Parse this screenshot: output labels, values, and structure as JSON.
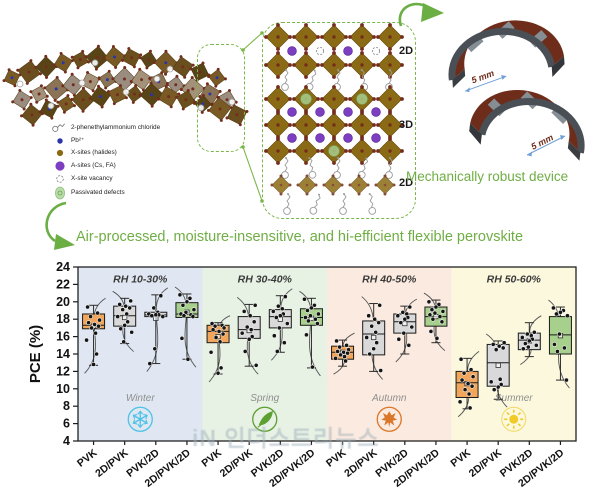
{
  "illustration": {
    "legend": [
      {
        "icon": "molecule-icon",
        "label": "2-phenethylammonium chloride"
      },
      {
        "icon": "pb-icon",
        "label": "Pb²⁺"
      },
      {
        "icon": "x-sites-icon",
        "label": "X-sites (halides)"
      },
      {
        "icon": "a-sites-icon",
        "label": "A-sites (Cs, FA)"
      },
      {
        "icon": "vacancy-icon",
        "label": "X-site vacancy"
      },
      {
        "icon": "defects-icon",
        "label": "Passivated defects"
      }
    ]
  },
  "panel": {
    "layers": [
      "2D",
      "3D",
      "2D"
    ]
  },
  "device": {
    "caption": "Mechanically robust device",
    "scale_label": "5 mm"
  },
  "headline": "Air-processed, moisture-insensitive, and hi-efficient flexible perovskite",
  "watermark": "iN 인더스트리뉴스",
  "accent_green": "#6fae44",
  "chart_data": {
    "type": "boxplot-scatter",
    "ylabel": "PCE (%)",
    "ylim": [
      4,
      24
    ],
    "yticks": [
      4,
      6,
      8,
      10,
      12,
      14,
      16,
      18,
      20,
      22,
      24
    ],
    "categories": [
      "PVK",
      "2D/PVK",
      "PVK/2D",
      "2D/PVK/2D"
    ],
    "box_colors": [
      "#f2a65c",
      "#d9d9d9",
      "#d9d9d9",
      "#a8d08d"
    ],
    "regions": [
      {
        "label": "RH 10-30%",
        "season": "Winter",
        "season_icon": "snowflake-icon",
        "icon_color": "#4cc3e6",
        "bg": "#e0e7f2",
        "groups": [
          {
            "whisker_low": 12.7,
            "q1": 16.9,
            "median": 17.3,
            "q3": 18.6,
            "whisker_high": 19.6,
            "mean": 17.2,
            "points": [
              19.4,
              18.7,
              18.3,
              17.9,
              17.6,
              17.4,
              17.2,
              17.0,
              16.4,
              15.6,
              14.0,
              12.8
            ]
          },
          {
            "whisker_low": 15.2,
            "q1": 17.2,
            "median": 18.4,
            "q3": 19.5,
            "whisker_high": 20.4,
            "mean": 18.2,
            "points": [
              20.1,
              19.7,
              19.5,
              19.3,
              19.1,
              18.6,
              18.3,
              17.7,
              17.3,
              16.9,
              16.5,
              15.4
            ]
          },
          {
            "whisker_low": 12.9,
            "q1": 18.3,
            "median": 18.5,
            "q3": 18.8,
            "whisker_high": 20.8,
            "mean": 18.1,
            "points": [
              20.7,
              19.3,
              18.8,
              18.6,
              18.5,
              18.5,
              18.4,
              18.3,
              14.6,
              12.9
            ]
          },
          {
            "whisker_low": 13.4,
            "q1": 18.2,
            "median": 18.6,
            "q3": 19.9,
            "whisker_high": 20.9,
            "mean": 18.8,
            "points": [
              20.8,
              20.4,
              20.0,
              19.6,
              19.1,
              18.8,
              18.6,
              18.5,
              18.4,
              18.3,
              15.8,
              13.4
            ]
          }
        ]
      },
      {
        "label": "RH 30-40%",
        "season": "Spring",
        "season_icon": "leaf-icon",
        "icon_color": "#5ca032",
        "bg": "#e7f1e4",
        "groups": [
          {
            "whisker_low": 11.7,
            "q1": 15.3,
            "median": 16.6,
            "q3": 17.3,
            "whisker_high": 17.6,
            "mean": 16.0,
            "points": [
              17.5,
              17.3,
              17.2,
              17.0,
              16.8,
              16.6,
              16.3,
              15.9,
              15.4,
              14.2,
              12.4,
              11.8
            ]
          },
          {
            "whisker_low": 12.6,
            "q1": 15.8,
            "median": 16.8,
            "q3": 18.3,
            "whisker_high": 19.7,
            "mean": 16.7,
            "points": [
              19.6,
              18.9,
              18.4,
              17.7,
              17.1,
              16.8,
              16.4,
              16.0,
              15.7,
              14.3,
              12.7
            ]
          },
          {
            "whisker_low": 14.2,
            "q1": 17.0,
            "median": 18.3,
            "q3": 19.1,
            "whisker_high": 20.7,
            "mean": 18.0,
            "points": [
              20.6,
              19.5,
              19.2,
              18.9,
              18.6,
              18.4,
              18.2,
              17.5,
              17.0,
              16.1,
              15.3,
              14.3
            ]
          },
          {
            "whisker_low": 12.4,
            "q1": 17.3,
            "median": 18.2,
            "q3": 19.2,
            "whisker_high": 20.4,
            "mean": 18.1,
            "points": [
              20.3,
              19.6,
              19.3,
              19.0,
              18.6,
              18.4,
              18.2,
              18.0,
              17.8,
              17.5,
              16.2,
              12.5
            ]
          }
        ]
      },
      {
        "label": "RH 40-50%",
        "season": "Autumn",
        "season_icon": "maple-leaf-icon",
        "icon_color": "#d9782a",
        "bg": "#fbeadf",
        "groups": [
          {
            "whisker_low": 12.6,
            "q1": 13.4,
            "median": 14.2,
            "q3": 14.9,
            "whisker_high": 15.6,
            "mean": 14.2,
            "points": [
              15.5,
              15.0,
              14.8,
              14.5,
              14.3,
              14.2,
              14.1,
              13.9,
              13.7,
              13.5,
              13.2
            ]
          },
          {
            "whisker_low": 12.0,
            "q1": 13.9,
            "median": 16.3,
            "q3": 17.8,
            "whisker_high": 19.8,
            "mean": 15.9,
            "points": [
              19.6,
              18.4,
              18.0,
              17.6,
              17.2,
              16.5,
              15.9,
              15.3,
              14.6,
              14.0,
              12.1
            ]
          },
          {
            "whisker_low": 14.0,
            "q1": 16.4,
            "median": 17.7,
            "q3": 18.6,
            "whisker_high": 19.5,
            "mean": 17.5,
            "points": [
              19.4,
              18.8,
              18.6,
              18.4,
              18.2,
              18.0,
              17.6,
              17.1,
              16.4,
              15.7,
              15.0
            ]
          },
          {
            "whisker_low": 15.3,
            "q1": 17.2,
            "median": 18.3,
            "q3": 19.4,
            "whisker_high": 20.2,
            "mean": 18.3,
            "points": [
              20.0,
              19.7,
              19.4,
              19.1,
              18.9,
              18.7,
              18.5,
              18.3,
              18.0,
              17.7,
              16.6,
              15.8
            ]
          }
        ]
      },
      {
        "label": "RH 50-60%",
        "season": "Summer",
        "season_icon": "sun-icon",
        "icon_color": "#f0cb28",
        "bg": "#fbf8dd",
        "groups": [
          {
            "whisker_low": 7.7,
            "q1": 9.0,
            "median": 10.7,
            "q3": 12.0,
            "whisker_high": 13.5,
            "mean": 10.6,
            "points": [
              13.4,
              12.2,
              11.8,
              11.4,
              11.0,
              10.6,
              10.3,
              9.9,
              9.4,
              8.5,
              7.8
            ]
          },
          {
            "whisker_low": 8.8,
            "q1": 10.3,
            "median": 13.0,
            "q3": 15.1,
            "whisker_high": 15.5,
            "mean": 12.7,
            "points": [
              15.3,
              15.1,
              14.9,
              14.7,
              14.5,
              11.1,
              10.8,
              10.5,
              10.2,
              9.9
            ]
          },
          {
            "whisker_low": 13.7,
            "q1": 14.5,
            "median": 15.6,
            "q3": 16.4,
            "whisker_high": 17.6,
            "mean": 15.5,
            "points": [
              16.5,
              16.3,
              16.1,
              15.9,
              15.7,
              15.5,
              15.2,
              15.0,
              14.8,
              14.6
            ]
          },
          {
            "whisker_low": 11.0,
            "q1": 14.0,
            "median": 16.2,
            "q3": 18.3,
            "whisker_high": 19.4,
            "mean": 16.1,
            "points": [
              19.3,
              19.0,
              18.8,
              18.6,
              18.4,
              16.3,
              15.1,
              14.7,
              14.3,
              11.0
            ]
          }
        ]
      }
    ]
  }
}
